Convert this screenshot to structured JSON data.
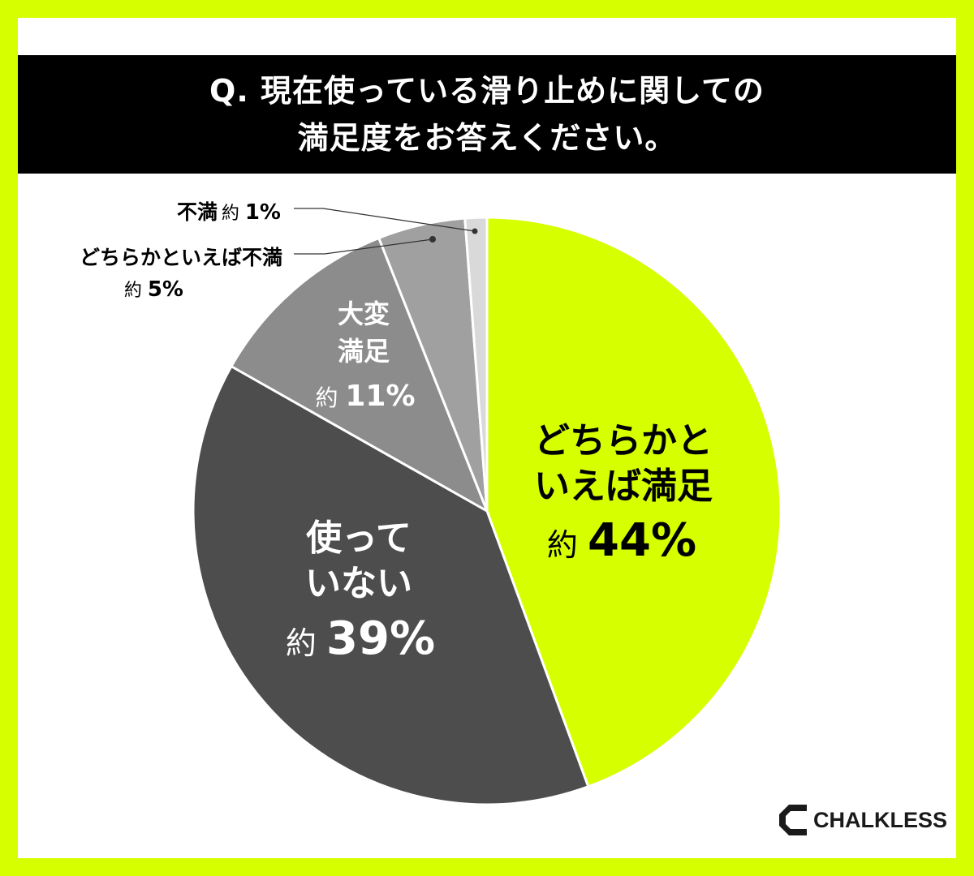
{
  "title": {
    "line1": "Q. 現在使っている滑り止めに関しての",
    "line2": "満足度をお答えください。"
  },
  "colors": {
    "frame": "#d6ff00",
    "slice_somewhat_satisfied": "#d6ff00",
    "slice_not_using": "#4d4d4d",
    "slice_very_satisfied": "#8c8c8c",
    "slice_somewhat_dissatisfied": "#a0a0a0",
    "slice_dissatisfied": "#d9d9d9"
  },
  "chart_data": {
    "type": "pie",
    "start_angle_deg": 0,
    "direction": "clockwise",
    "slices": [
      {
        "key": "somewhat_satisfied",
        "label_lines": [
          "どちらかと",
          "いえば満足"
        ],
        "prefix": "約",
        "value_text": "44%",
        "value": 44.4
      },
      {
        "key": "not_using",
        "label_lines": [
          "使って",
          "いない"
        ],
        "prefix": "約",
        "value_text": "39%",
        "value": 38.8
      },
      {
        "key": "very_satisfied",
        "label_lines": [
          "大変",
          "満足"
        ],
        "prefix": "約",
        "value_text": "11%",
        "value": 10.8
      },
      {
        "key": "somewhat_dissatisfied",
        "label_lines": [
          "どちらかといえば不満"
        ],
        "prefix": "約",
        "value_text": "5%",
        "value": 4.8
      },
      {
        "key": "dissatisfied",
        "label_lines": [
          "不満"
        ],
        "prefix": "約",
        "value_text": "1%",
        "value": 1.2
      }
    ]
  },
  "logo": {
    "text": "CHALKLESS"
  }
}
